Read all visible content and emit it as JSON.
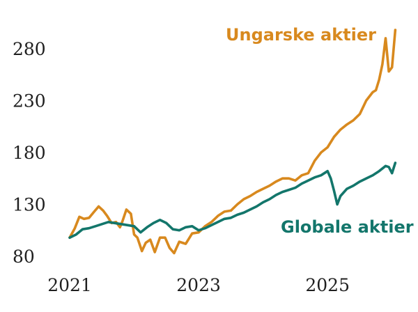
{
  "chart_data": {
    "type": "line",
    "title": "",
    "xlabel": "",
    "ylabel": "",
    "xlim": [
      2021.0,
      2026.1
    ],
    "ylim": [
      80,
      300
    ],
    "y_ticks": [
      80,
      130,
      180,
      230,
      280
    ],
    "y_tick_labels": [
      "80",
      "130",
      "180",
      "230",
      "280"
    ],
    "x_ticks": [
      2021,
      2023,
      2025
    ],
    "x_tick_labels": [
      "2021",
      "2023",
      "2025"
    ],
    "grid": false,
    "legend": "none",
    "series": [
      {
        "name": "Ungarske aktier",
        "color": "#D8891E",
        "x": [
          2021.0,
          2021.08,
          2021.15,
          2021.22,
          2021.3,
          2021.38,
          2021.45,
          2021.52,
          2021.58,
          2021.65,
          2021.72,
          2021.78,
          2021.82,
          2021.88,
          2021.95,
          2022.0,
          2022.05,
          2022.12,
          2022.18,
          2022.25,
          2022.32,
          2022.4,
          2022.48,
          2022.55,
          2022.62,
          2022.7,
          2022.8,
          2022.9,
          2023.0,
          2023.1,
          2023.2,
          2023.3,
          2023.4,
          2023.5,
          2023.6,
          2023.7,
          2023.8,
          2023.9,
          2024.0,
          2024.1,
          2024.2,
          2024.3,
          2024.4,
          2024.5,
          2024.6,
          2024.7,
          2024.8,
          2024.9,
          2025.0,
          2025.1,
          2025.2,
          2025.3,
          2025.4,
          2025.5,
          2025.6,
          2025.7,
          2025.75,
          2025.8,
          2025.85,
          2025.9,
          2025.95,
          2026.0,
          2026.05
        ],
        "values": [
          98,
          107,
          118,
          116,
          117,
          123,
          128,
          124,
          119,
          112,
          113,
          108,
          114,
          125,
          121,
          101,
          98,
          85,
          93,
          96,
          84,
          98,
          98,
          88,
          83,
          94,
          92,
          102,
          103,
          109,
          113,
          119,
          123,
          124,
          130,
          135,
          138,
          142,
          145,
          148,
          152,
          155,
          155,
          153,
          158,
          160,
          172,
          180,
          185,
          195,
          202,
          207,
          211,
          217,
          230,
          238,
          240,
          250,
          265,
          290,
          258,
          262,
          298
        ]
      },
      {
        "name": "Globale aktier",
        "color": "#13766B",
        "x": [
          2021.0,
          2021.1,
          2021.2,
          2021.3,
          2021.4,
          2021.5,
          2021.6,
          2021.7,
          2021.8,
          2021.9,
          2022.0,
          2022.1,
          2022.2,
          2022.3,
          2022.4,
          2022.5,
          2022.6,
          2022.7,
          2022.8,
          2022.9,
          2023.0,
          2023.1,
          2023.2,
          2023.3,
          2023.4,
          2023.5,
          2023.6,
          2023.7,
          2023.8,
          2023.9,
          2024.0,
          2024.1,
          2024.2,
          2024.3,
          2024.4,
          2024.5,
          2024.6,
          2024.7,
          2024.8,
          2024.9,
          2025.0,
          2025.05,
          2025.1,
          2025.15,
          2025.2,
          2025.3,
          2025.4,
          2025.5,
          2025.6,
          2025.7,
          2025.8,
          2025.9,
          2025.95,
          2026.0,
          2026.05
        ],
        "values": [
          98,
          101,
          106,
          107,
          109,
          111,
          113,
          112,
          111,
          110,
          109,
          103,
          108,
          112,
          115,
          112,
          106,
          105,
          108,
          109,
          105,
          107,
          110,
          113,
          116,
          117,
          120,
          122,
          125,
          128,
          132,
          135,
          139,
          142,
          144,
          146,
          150,
          153,
          156,
          158,
          162,
          155,
          143,
          130,
          138,
          145,
          148,
          152,
          155,
          158,
          162,
          167,
          166,
          160,
          170
        ]
      }
    ],
    "annotations": [
      {
        "text": "Ungarske aktier",
        "series": "Ungarske aktier",
        "color": "#D8891E"
      },
      {
        "text": "Globale aktier",
        "series": "Globale aktier",
        "color": "#13766B"
      }
    ]
  }
}
